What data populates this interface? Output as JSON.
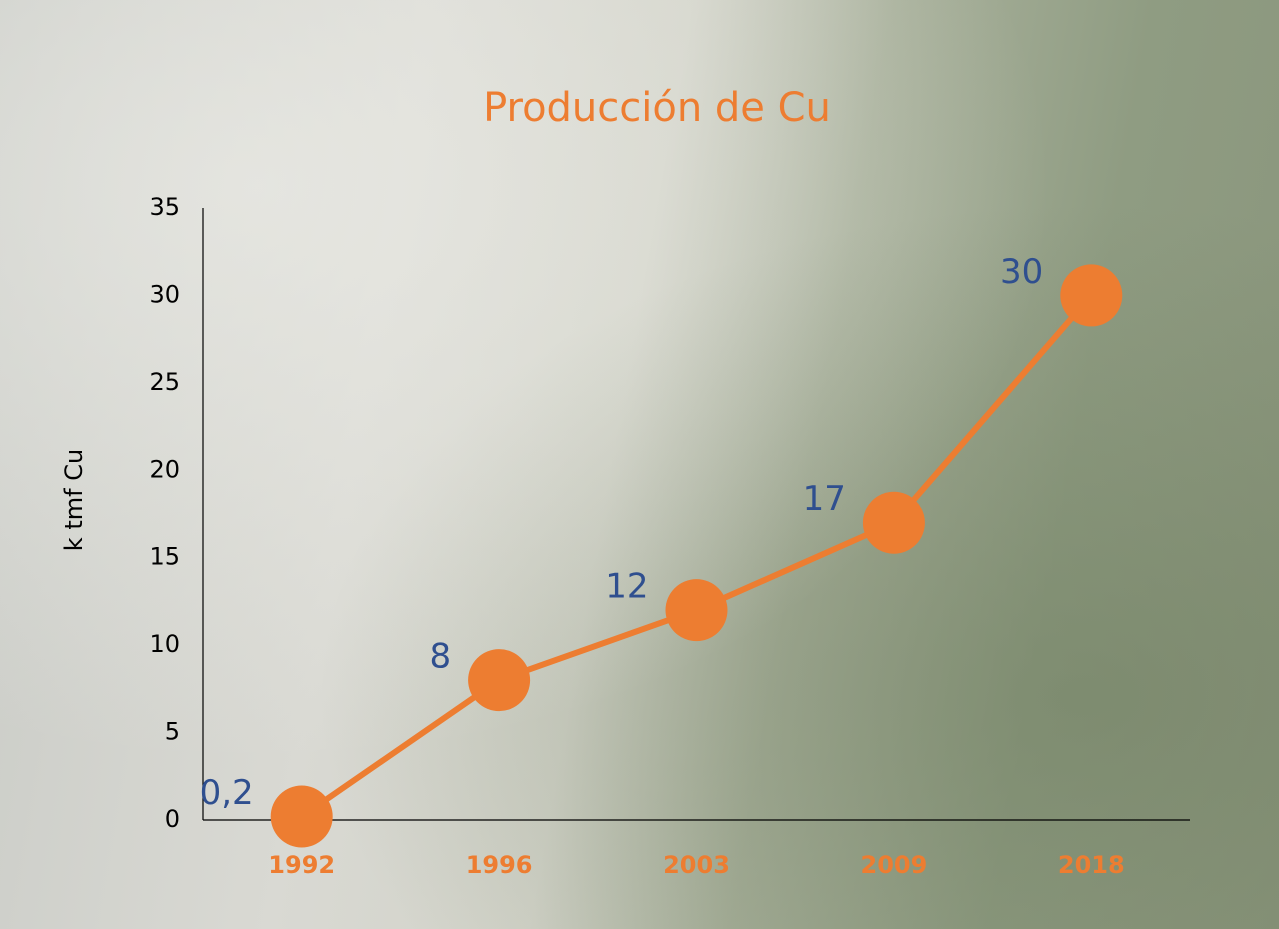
{
  "chart_data": {
    "type": "line",
    "title": "Producción de Cu",
    "y_label": "k tmf Cu",
    "categories": [
      "1992",
      "1996",
      "2003",
      "2009",
      "2018"
    ],
    "values": [
      0.2,
      8,
      12,
      17,
      30
    ],
    "value_labels": [
      "0,2",
      "8",
      "12",
      "17",
      "30"
    ],
    "color": "#ed7d31",
    "ylim": [
      0,
      35
    ],
    "yticks": [
      0,
      5,
      10,
      15,
      20,
      25,
      30,
      35
    ],
    "grid": false
  }
}
